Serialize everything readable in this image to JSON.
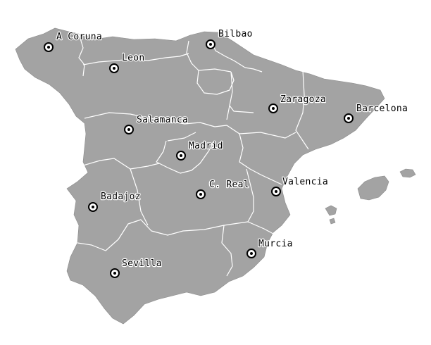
{
  "map": {
    "cities": [
      {
        "name": "A Coruna",
        "icon": "target-marker-icon"
      },
      {
        "name": "Bilbao",
        "icon": "target-marker-icon"
      },
      {
        "name": "Leon",
        "icon": "target-marker-icon"
      },
      {
        "name": "Zaragoza",
        "icon": "target-marker-icon"
      },
      {
        "name": "Barcelona",
        "icon": "target-marker-icon"
      },
      {
        "name": "Salamanca",
        "icon": "target-marker-icon"
      },
      {
        "name": "Madrid",
        "icon": "target-marker-icon"
      },
      {
        "name": "C. Real",
        "icon": "target-marker-icon"
      },
      {
        "name": "Valencia",
        "icon": "target-marker-icon"
      },
      {
        "name": "Badajoz",
        "icon": "target-marker-icon"
      },
      {
        "name": "Murcia",
        "icon": "target-marker-icon"
      },
      {
        "name": "Sevilla",
        "icon": "target-marker-icon"
      }
    ],
    "colors": {
      "land": "#a3a3a3",
      "region_border": "#ffffff",
      "marker": "#000000",
      "background": "#ffffff"
    }
  }
}
